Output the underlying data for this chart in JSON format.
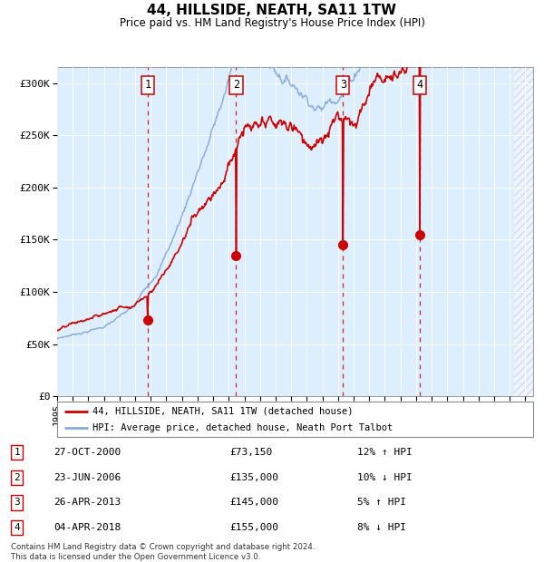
{
  "title": "44, HILLSIDE, NEATH, SA11 1TW",
  "subtitle": "Price paid vs. HM Land Registry's House Price Index (HPI)",
  "legend_property": "44, HILLSIDE, NEATH, SA11 1TW (detached house)",
  "legend_hpi": "HPI: Average price, detached house, Neath Port Talbot",
  "ylabel_ticks": [
    "£0",
    "£50K",
    "£100K",
    "£150K",
    "£200K",
    "£250K",
    "£300K"
  ],
  "ytick_values": [
    0,
    50000,
    100000,
    150000,
    200000,
    250000,
    300000
  ],
  "ylim": [
    0,
    315000
  ],
  "xlim_start": 1995.0,
  "xlim_end": 2025.5,
  "transactions": [
    {
      "num": 1,
      "date": "27-OCT-2000",
      "price": 73150,
      "pct": "12%",
      "dir": "↑",
      "year": 2000.82
    },
    {
      "num": 2,
      "date": "23-JUN-2006",
      "price": 135000,
      "pct": "10%",
      "dir": "↓",
      "year": 2006.47
    },
    {
      "num": 3,
      "date": "26-APR-2013",
      "price": 145000,
      "pct": "5%",
      "dir": "↑",
      "year": 2013.32
    },
    {
      "num": 4,
      "date": "04-APR-2018",
      "price": 155000,
      "pct": "8%",
      "dir": "↓",
      "year": 2018.25
    }
  ],
  "property_color": "#cc0000",
  "hpi_color": "#88aadd",
  "vline_color": "#cc0000",
  "dot_color": "#cc0000",
  "box_color": "#cc0000",
  "background_panel": "#ddeeff",
  "footnote": "Contains HM Land Registry data © Crown copyright and database right 2024.\nThis data is licensed under the Open Government Licence v3.0."
}
